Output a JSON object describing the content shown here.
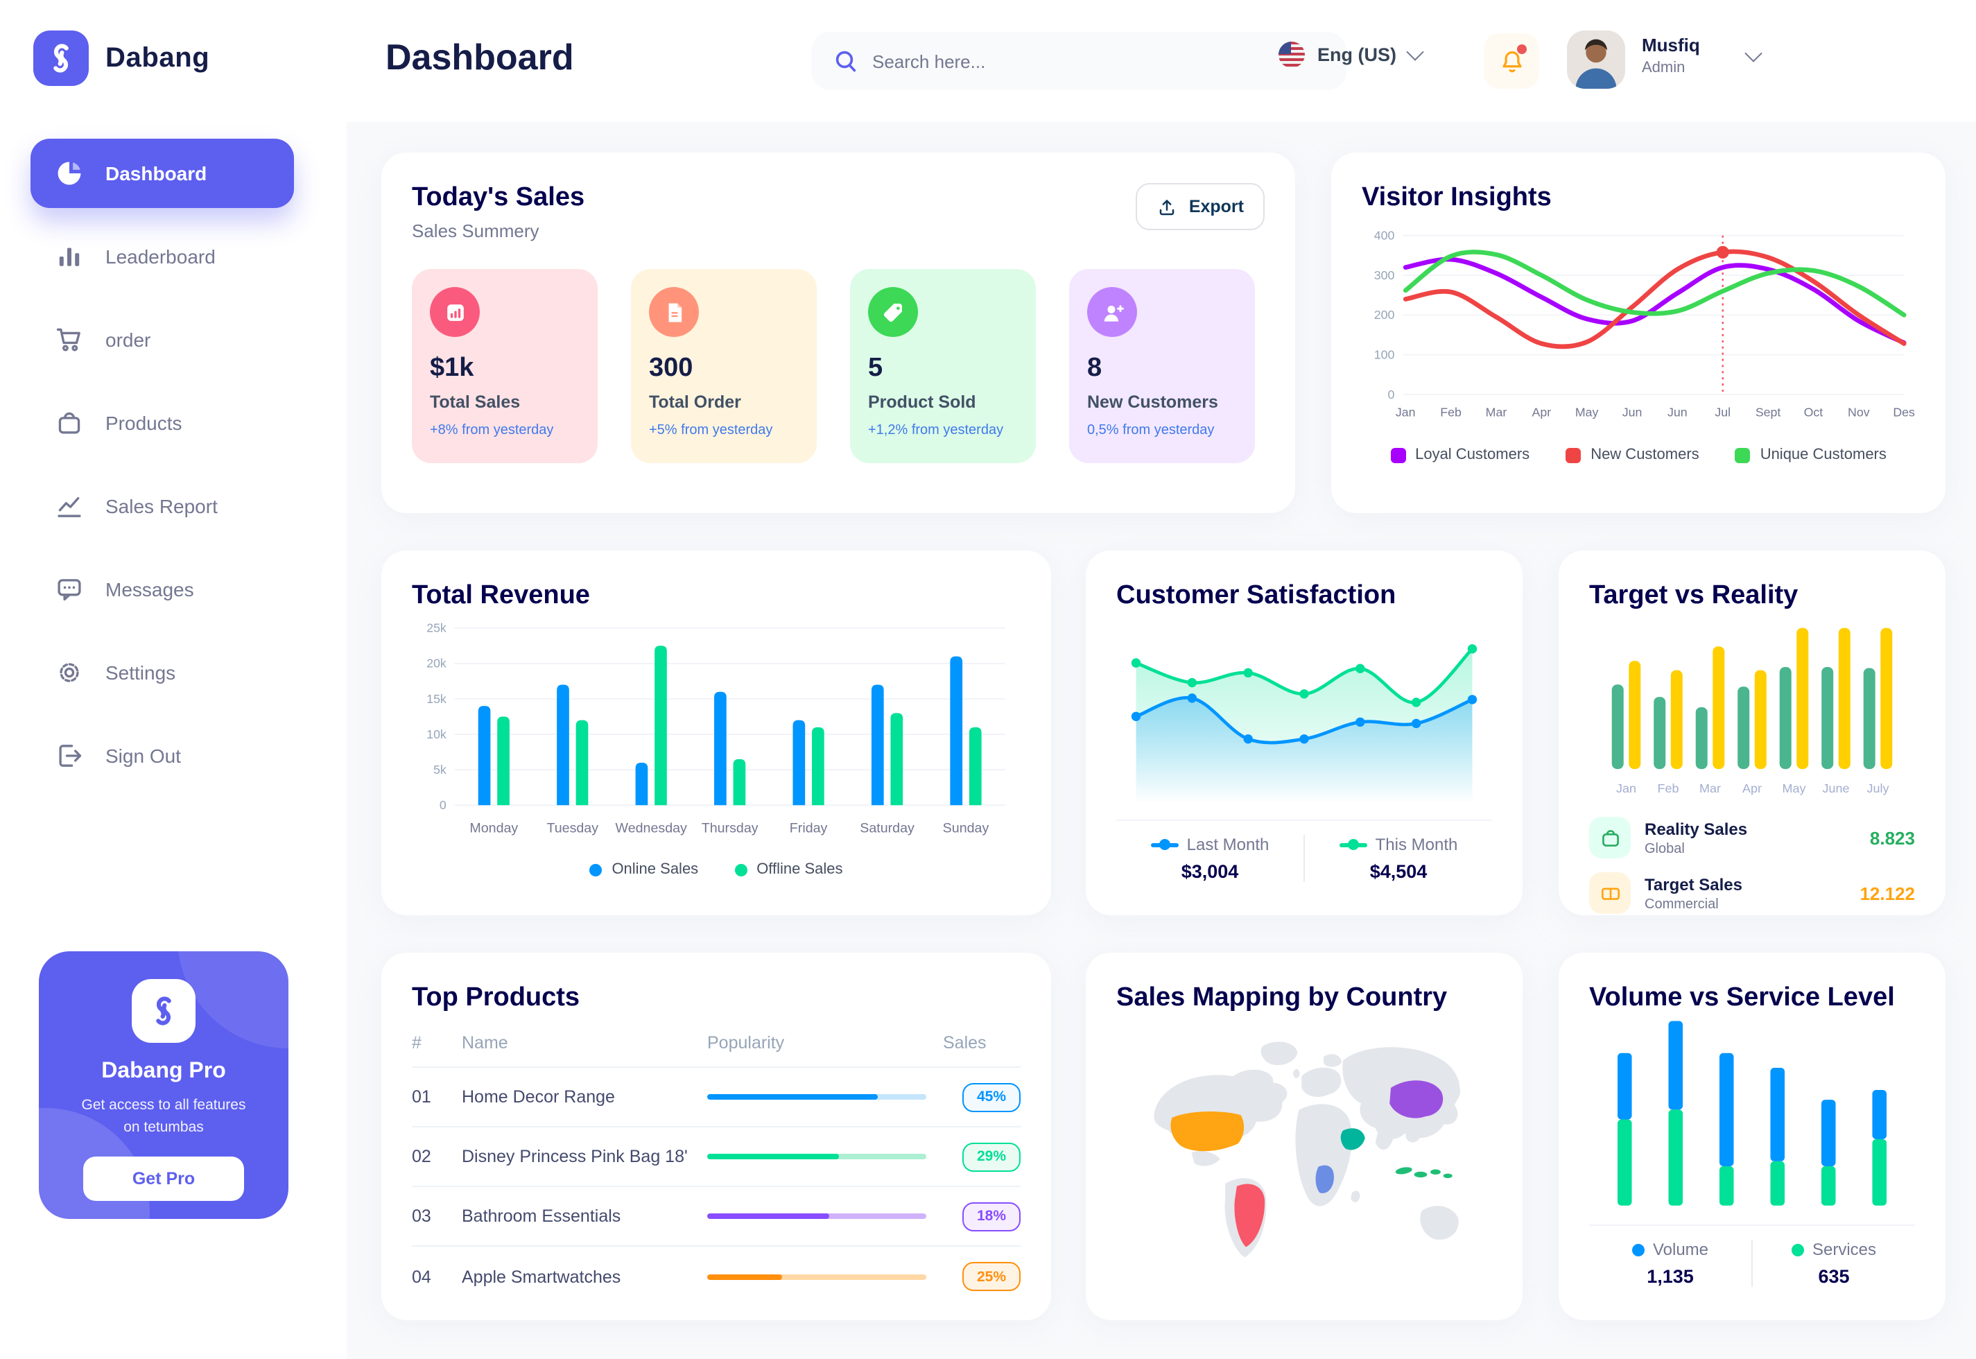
{
  "brand": {
    "name": "Dabang"
  },
  "header": {
    "page_title": "Dashboard",
    "search_placeholder": "Search here...",
    "language": "Eng (US)",
    "user_name": "Musfiq",
    "user_role": "Admin"
  },
  "sidebar": {
    "items": [
      {
        "label": "Dashboard",
        "icon": "dashboard",
        "active": true
      },
      {
        "label": "Leaderboard",
        "icon": "leaderboard",
        "active": false
      },
      {
        "label": "order",
        "icon": "cart",
        "active": false
      },
      {
        "label": "Products",
        "icon": "bag",
        "active": false
      },
      {
        "label": "Sales Report",
        "icon": "chart",
        "active": false
      },
      {
        "label": "Messages",
        "icon": "message",
        "active": false
      },
      {
        "label": "Settings",
        "icon": "gear",
        "active": false
      },
      {
        "label": "Sign Out",
        "icon": "signout",
        "active": false
      }
    ],
    "pro": {
      "title": "Dabang Pro",
      "description": "Get access to all features on tetumbas",
      "button": "Get Pro"
    }
  },
  "today_sales": {
    "title": "Today's Sales",
    "subtitle": "Sales Summery",
    "export_label": "Export",
    "cards": [
      {
        "value": "$1k",
        "label": "Total Sales",
        "trend": "+8% from yesterday",
        "bg": "#FFE2E5",
        "icon_bg": "#FA5A7D",
        "icon": "stats"
      },
      {
        "value": "300",
        "label": "Total Order",
        "trend": "+5% from yesterday",
        "bg": "#FFF4DE",
        "icon_bg": "#FF947A",
        "icon": "file"
      },
      {
        "value": "5",
        "label": "Product Sold",
        "trend": "+1,2% from yesterday",
        "bg": "#DCFCE7",
        "icon_bg": "#3CD856",
        "icon": "tag"
      },
      {
        "value": "8",
        "label": "New Customers",
        "trend": "0,5% from yesterday",
        "bg": "#F3E8FF",
        "icon_bg": "#BF83FF",
        "icon": "user-plus"
      }
    ]
  },
  "visitor_insights": {
    "title": "Visitor Insights",
    "type": "line",
    "x": [
      "Jan",
      "Feb",
      "Mar",
      "Apr",
      "May",
      "Jun",
      "Jun",
      "Jul",
      "Sept",
      "Oct",
      "Nov",
      "Des"
    ],
    "ylim": [
      0,
      400
    ],
    "yticks": [
      "0",
      "100",
      "200",
      "300",
      "400"
    ],
    "series": [
      {
        "name": "Loyal Customers",
        "color": "#A700FF",
        "values": [
          320,
          340,
          305,
          245,
          190,
          185,
          255,
          320,
          315,
          265,
          185,
          130
        ]
      },
      {
        "name": "New Customers",
        "color": "#EF4444",
        "values": [
          240,
          258,
          195,
          128,
          132,
          220,
          315,
          358,
          345,
          285,
          200,
          128
        ]
      },
      {
        "name": "Unique Customers",
        "color": "#3CD856",
        "values": [
          262,
          348,
          352,
          300,
          238,
          207,
          210,
          260,
          305,
          312,
          272,
          200
        ]
      }
    ],
    "highlight": {
      "series_index": 1,
      "x_index": 7
    }
  },
  "total_revenue": {
    "title": "Total Revenue",
    "type": "bar",
    "categories": [
      "Monday",
      "Tuesday",
      "Wednesday",
      "Thursday",
      "Friday",
      "Saturday",
      "Sunday"
    ],
    "ylim": [
      0,
      25000
    ],
    "yticks": [
      "0",
      "5k",
      "10k",
      "15k",
      "20k",
      "25k"
    ],
    "series": [
      {
        "name": "Online Sales",
        "color": "#0095FF",
        "values": [
          14000,
          17000,
          6000,
          16000,
          12000,
          17000,
          21000
        ]
      },
      {
        "name": "Offline Sales",
        "color": "#00E096",
        "values": [
          12500,
          12000,
          22500,
          6500,
          11000,
          13000,
          11000
        ]
      }
    ]
  },
  "customer_satisfaction": {
    "title": "Customer Satisfaction",
    "type": "area",
    "series": [
      {
        "name": "Last Month",
        "color": "#0095FF",
        "total": "$3,004",
        "values": [
          44,
          57,
          28,
          28,
          40,
          39,
          56
        ]
      },
      {
        "name": "This Month",
        "color": "#00E096",
        "total": "$4,504",
        "values": [
          82,
          68,
          75,
          60,
          78,
          54,
          92
        ]
      }
    ]
  },
  "target_vs_reality": {
    "title": "Target vs Reality",
    "type": "bar",
    "categories": [
      "Jan",
      "Feb",
      "Mar",
      "Apr",
      "May",
      "June",
      "July"
    ],
    "ylim": [
      0,
      14
    ],
    "series": [
      {
        "name": "Reality Sales",
        "color": "#4AB58E",
        "values": [
          8.2,
          7.0,
          6.0,
          8.0,
          9.9,
          9.9,
          9.8
        ]
      },
      {
        "name": "Target Sales",
        "color": "#FFCF00",
        "values": [
          10.5,
          9.6,
          11.9,
          9.6,
          13.7,
          13.7,
          13.7
        ]
      }
    ],
    "legend": [
      {
        "name": "Reality Sales",
        "sub": "Global",
        "value": "8.823",
        "value_color": "#27AE60",
        "icon_bg": "#E2FFF3",
        "icon": "bag-line"
      },
      {
        "name": "Target Sales",
        "sub": "Commercial",
        "value": "12.122",
        "value_color": "#FFA412",
        "icon_bg": "#FFF4DE",
        "icon": "ticket"
      }
    ]
  },
  "top_products": {
    "title": "Top Products",
    "columns": [
      "#",
      "Name",
      "Popularity",
      "Sales"
    ],
    "rows": [
      {
        "num": "01",
        "name": "Home Decor Range",
        "sales": "45%",
        "fill": 78,
        "color": "#0095FF",
        "track": "#C5E5FB",
        "badge_bg": "#F2F9FF"
      },
      {
        "num": "02",
        "name": "Disney Princess Pink Bag 18'",
        "sales": "29%",
        "fill": 60,
        "color": "#00E096",
        "track": "#ADEFD3",
        "badge_bg": "#EAFBF4"
      },
      {
        "num": "03",
        "name": "Bathroom Essentials",
        "sales": "18%",
        "fill": 56,
        "color": "#884DFF",
        "track": "#CFB2FB",
        "badge_bg": "#F6EEFF"
      },
      {
        "num": "04",
        "name": "Apple Smartwatches",
        "sales": "25%",
        "fill": 34,
        "color": "#FF8F0D",
        "track": "#FFD8A6",
        "badge_bg": "#FFF4E4"
      }
    ]
  },
  "sales_map": {
    "title": "Sales Mapping by Country",
    "countries": [
      {
        "key": "usa",
        "name": "United States",
        "color": "#FFA412"
      },
      {
        "key": "brazil",
        "name": "Brazil",
        "color": "#F75768"
      },
      {
        "key": "dr_congo",
        "name": "DR Congo",
        "color": "#6B8DE3"
      },
      {
        "key": "saudi_arabia",
        "name": "Saudi Arabia",
        "color": "#00B59C"
      },
      {
        "key": "china",
        "name": "China",
        "color": "#9B51E0"
      },
      {
        "key": "indonesia",
        "name": "Indonesia",
        "color": "#1FBE77"
      }
    ]
  },
  "volume_service": {
    "title": "Volume vs Service Level",
    "type": "stacked-bar",
    "series": [
      {
        "name": "Volume",
        "color": "#0095FF",
        "total": "1,135",
        "values": [
          27,
          36,
          46,
          38,
          27,
          20
        ]
      },
      {
        "name": "Services",
        "color": "#00E096",
        "total": "635",
        "values": [
          35,
          39,
          16,
          18,
          16,
          27
        ]
      }
    ]
  }
}
